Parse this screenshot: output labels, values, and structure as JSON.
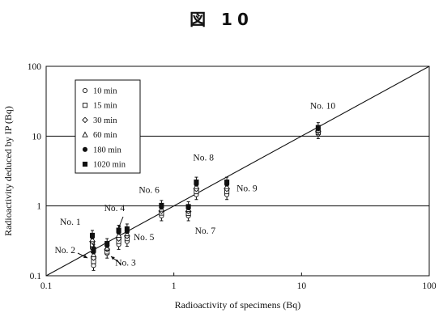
{
  "figure_title": "図 10",
  "chart_data": {
    "type": "scatter",
    "title": "図 10",
    "xlabel": "Radioactivity of specimens (Bq)",
    "ylabel": "Radioactivity deduced by IP (Bq)",
    "xscale": "log",
    "yscale": "log",
    "xlim": [
      0.1,
      100
    ],
    "ylim": [
      0.1,
      100
    ],
    "x_ticks": [
      "0.1",
      "1",
      "10",
      "100"
    ],
    "y_ticks": [
      "0.1",
      "1",
      "10",
      "100"
    ],
    "grid": "horizontal at 1, 10",
    "legend_position": "top-left",
    "reference_line": {
      "label": "y = x",
      "x": [
        0.1,
        100
      ],
      "y": [
        0.1,
        100
      ]
    },
    "series": [
      {
        "name": "10 min",
        "marker": "open-circle"
      },
      {
        "name": "15 min",
        "marker": "open-square"
      },
      {
        "name": "30 min",
        "marker": "open-diamond"
      },
      {
        "name": "60 min",
        "marker": "open-triangle"
      },
      {
        "name": "180 min",
        "marker": "filled-circle"
      },
      {
        "name": "1020 min",
        "marker": "filled-square"
      }
    ],
    "specimens": [
      {
        "label": "No. 1",
        "x": 0.23,
        "y": [
          0.25,
          0.28,
          0.31,
          0.33,
          0.36,
          0.38
        ]
      },
      {
        "label": "No. 2",
        "x": 0.235,
        "y": [
          0.14,
          0.16,
          0.18,
          0.2,
          0.22,
          0.24
        ]
      },
      {
        "label": "No. 3",
        "x": 0.3,
        "y": [
          0.21,
          0.22,
          0.24,
          0.25,
          0.27,
          0.29
        ]
      },
      {
        "label": "No. 4",
        "x": 0.37,
        "y": [
          0.28,
          0.31,
          0.34,
          0.38,
          0.42,
          0.45
        ]
      },
      {
        "label": "No. 5",
        "x": 0.43,
        "y": [
          0.31,
          0.34,
          0.37,
          0.4,
          0.43,
          0.47
        ]
      },
      {
        "label": "No. 6",
        "x": 0.8,
        "y": [
          0.72,
          0.79,
          0.85,
          0.9,
          0.96,
          1.02
        ]
      },
      {
        "label": "No. 7",
        "x": 1.3,
        "y": [
          0.72,
          0.78,
          0.84,
          0.89,
          0.94,
          0.98
        ]
      },
      {
        "label": "No. 8",
        "x": 1.5,
        "y": [
          1.45,
          1.6,
          1.75,
          1.9,
          2.05,
          2.2
        ]
      },
      {
        "label": "No. 9",
        "x": 2.6,
        "y": [
          1.45,
          1.6,
          1.75,
          1.9,
          2.05,
          2.2
        ]
      },
      {
        "label": "No. 10",
        "x": 13.5,
        "y": [
          10.8,
          11.3,
          11.8,
          12.3,
          12.8,
          13.3
        ]
      }
    ]
  }
}
